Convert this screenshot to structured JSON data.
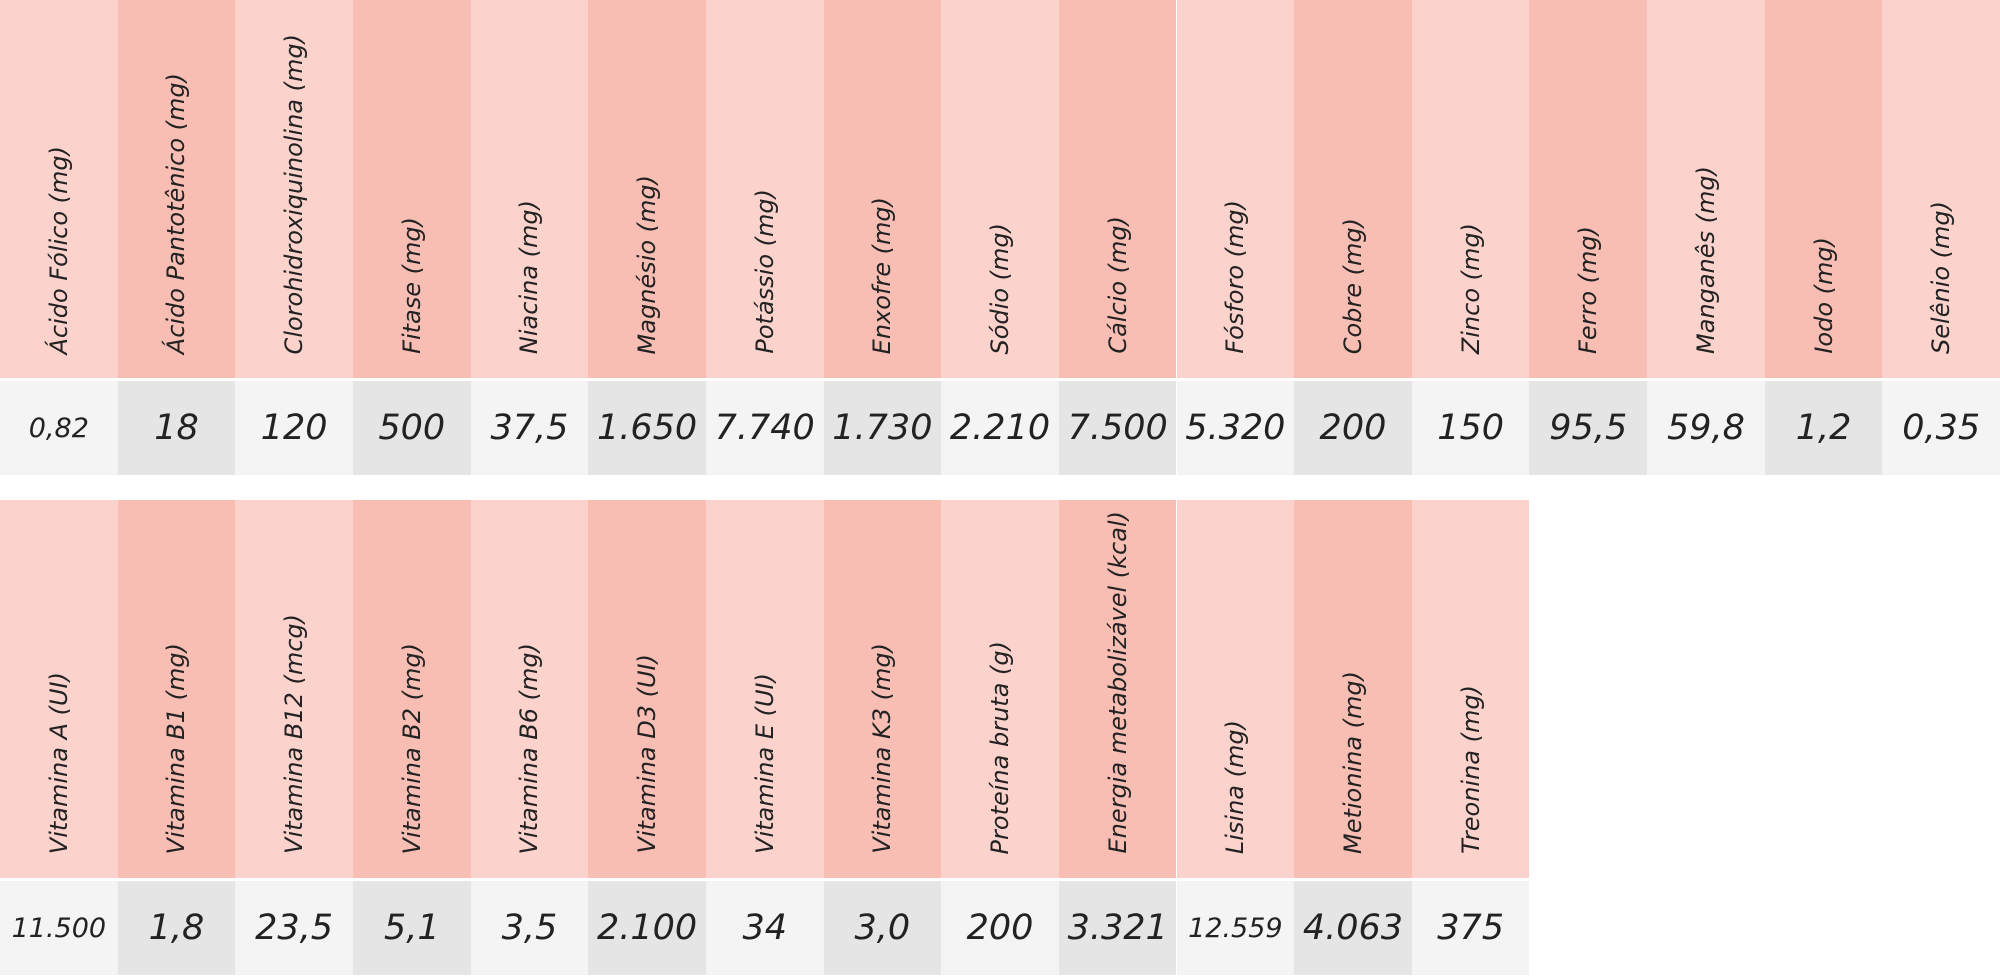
{
  "tables": [
    {
      "columns": [
        {
          "header": "Ácido Fólico (mg)",
          "value": "0,82"
        },
        {
          "header": "Ácido Pantotênico  (mg)",
          "value": "18"
        },
        {
          "header": "Clorohidroxiquinolina  (mg)",
          "value": "120"
        },
        {
          "header": "Fitase  (mg)",
          "value": "500"
        },
        {
          "header": "Niacina  (mg)",
          "value": "37,5"
        },
        {
          "header": "Magnésio  (mg)",
          "value": "1.650"
        },
        {
          "header": "Potássio  (mg)",
          "value": "7.740"
        },
        {
          "header": "Enxofre  (mg)",
          "value": "1.730"
        },
        {
          "header": "Sódio  (mg)",
          "value": "2.210"
        },
        {
          "header": "Cálcio  (mg)",
          "value": "7.500"
        },
        {
          "header": "Fósforo (mg)",
          "value": "5.320"
        },
        {
          "header": "Cobre (mg)",
          "value": "200"
        },
        {
          "header": "Zinco (mg)",
          "value": "150"
        },
        {
          "header": "Ferro (mg)",
          "value": "95,5"
        },
        {
          "header": "Manganês (mg)",
          "value": "59,8"
        },
        {
          "header": "Iodo (mg)",
          "value": "1,2"
        },
        {
          "header": "Selênio (mg)",
          "value": "0,35"
        }
      ]
    },
    {
      "columns": [
        {
          "header": "Vitamina A (UI)",
          "value": "11.500"
        },
        {
          "header": "Vitamina B1 (mg)",
          "value": "1,8"
        },
        {
          "header": "Vitamina B12 (mcg)",
          "value": "23,5"
        },
        {
          "header": "Vitamina B2 (mg)",
          "value": "5,1"
        },
        {
          "header": "Vitamina B6 (mg)",
          "value": "3,5"
        },
        {
          "header": "Vitamina D3 (UI)",
          "value": "2.100"
        },
        {
          "header": "Vitamina E (UI)",
          "value": "34"
        },
        {
          "header": "Vitamina K3 (mg)",
          "value": "3,0"
        },
        {
          "header": "Proteína bruta (g)",
          "value": "200"
        },
        {
          "header": "Energia metabolizável (kcal)",
          "value": "3.321"
        },
        {
          "header": "Lisina (mg)",
          "value": "12.559"
        },
        {
          "header": "Metionina (mg)",
          "value": "4.063"
        },
        {
          "header": "Treonina (mg)",
          "value": "375"
        }
      ]
    }
  ]
}
